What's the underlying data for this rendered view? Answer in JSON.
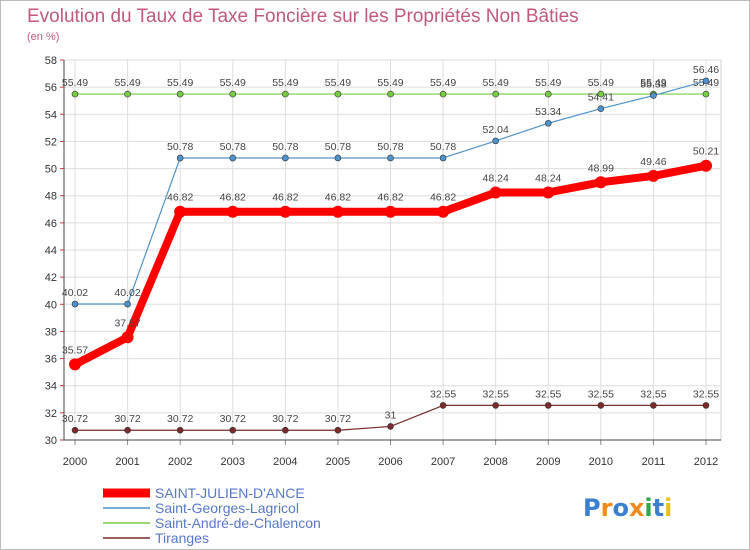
{
  "chart_data": {
    "type": "line",
    "title": "Evolution du Taux de Taxe Foncière sur les Propriétés Non Bâties",
    "ylabel": "(en %)",
    "xlabel": "",
    "ylim": [
      30,
      58
    ],
    "yticks": [
      30,
      32,
      34,
      36,
      38,
      40,
      42,
      44,
      46,
      48,
      50,
      52,
      54,
      56,
      58
    ],
    "grid": true,
    "x": [
      "2000",
      "2001",
      "2002",
      "2003",
      "2004",
      "2005",
      "2006",
      "2007",
      "2008",
      "2009",
      "2010",
      "2011",
      "2012"
    ],
    "series": [
      {
        "name": "Tiranges",
        "color": "#7a2a2a",
        "values": [
          30.72,
          30.72,
          30.72,
          30.72,
          30.72,
          30.72,
          31,
          32.55,
          32.55,
          32.55,
          32.55,
          32.55,
          32.55
        ],
        "labels": [
          "30.72",
          "30.72",
          "30.72",
          "30.72",
          "30.72",
          "30.72",
          "31",
          "32.55",
          "32.55",
          "32.55",
          "32.55",
          "32.55",
          "32.55"
        ]
      },
      {
        "name": "Saint-André-de-Chalencon",
        "color": "#77cc44",
        "values": [
          55.49,
          55.49,
          55.49,
          55.49,
          55.49,
          55.49,
          55.49,
          55.49,
          55.49,
          55.49,
          55.49,
          55.49,
          55.49
        ],
        "labels": [
          "55.49",
          "55.49",
          "55.49",
          "55.49",
          "55.49",
          "55.49",
          "55.49",
          "55.49",
          "55.49",
          "55.49",
          "55.49",
          "55.49",
          "55.49"
        ]
      },
      {
        "name": "Saint-Georges-Lagricol",
        "color": "#4f93cc",
        "values": [
          40.02,
          40.02,
          50.78,
          50.78,
          50.78,
          50.78,
          50.78,
          50.78,
          52.04,
          53.34,
          54.41,
          55.38,
          56.46
        ],
        "labels": [
          "40.02",
          "40.02",
          "50.78",
          "50.78",
          "50.78",
          "50.78",
          "50.78",
          "50.78",
          "52.04",
          "53.34",
          "54.41",
          "55.38",
          "56.46"
        ]
      },
      {
        "name": "SAINT-JULIEN-D'ANCE",
        "color": "#ff0000",
        "values": [
          35.57,
          37.57,
          46.82,
          46.82,
          46.82,
          46.82,
          46.82,
          46.82,
          48.24,
          48.24,
          48.99,
          49.46,
          50.21
        ],
        "labels": [
          "35.57",
          "37.57",
          "46.82",
          "46.82",
          "46.82",
          "46.82",
          "46.82",
          "46.82",
          "48.24",
          "48.24",
          "48.99",
          "49.46",
          "50.21"
        ]
      }
    ],
    "legend": [
      "SAINT-JULIEN-D'ANCE",
      "Saint-Georges-Lagricol",
      "Saint-André-de-Chalencon",
      "Tiranges"
    ],
    "legend_position": "bottom-left"
  },
  "logo": {
    "text": "Proxiti"
  }
}
